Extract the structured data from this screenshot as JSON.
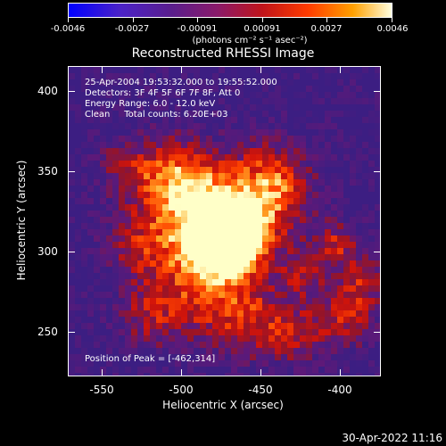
{
  "colorbar": {
    "ticks": [
      "-0.0046",
      "-0.0027",
      "-0.00091",
      "0.00091",
      "0.0027",
      "0.0046"
    ],
    "unit": "(photons cm⁻² s⁻¹ asec⁻²)"
  },
  "title": "Reconstructed RHESSI Image",
  "info": {
    "line1": "25-Apr-2004 19:53:32.000 to 19:55:52.000",
    "line2": "Detectors: 3F 4F 5F 6F 7F 8F, Att 0",
    "line3": "Energy Range: 6.0 - 12.0 keV",
    "line4": "Clean     Total counts: 6.20E+03",
    "peak": "Position of Peak = [-462,314]"
  },
  "chart_data": {
    "type": "heatmap",
    "title": "Reconstructed RHESSI Image",
    "xlabel": "Heliocentric X (arcsec)",
    "ylabel": "Heliocentric Y (arcsec)",
    "xlim": [
      -570,
      -372
    ],
    "ylim": [
      222,
      415
    ],
    "x_ticks": [
      "-550",
      "-500",
      "-450",
      "-400"
    ],
    "y_ticks": [
      "400",
      "350",
      "300",
      "250"
    ],
    "colorbar_range": [
      -0.0046,
      0.0046
    ],
    "peak_position": [
      -462,
      314
    ],
    "colors": {
      "low": "#0000ff",
      "mid": "#5a1e8c",
      "high": "#ffffe0"
    }
  },
  "footer": {
    "timestamp": "30-Apr-2022 11:16"
  }
}
